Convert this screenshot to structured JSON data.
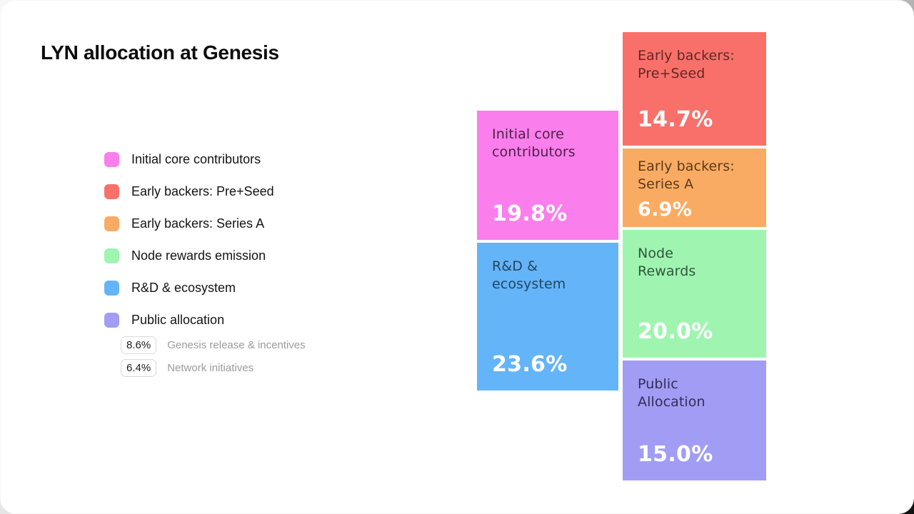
{
  "chart_data": {
    "type": "treemap",
    "title": "LYN allocation at Genesis",
    "unit": "%",
    "legend_position": "left",
    "value_text_color": "#ffffff",
    "segments": [
      {
        "label": "Initial core contributors",
        "block_label": "Initial core\ncontributors",
        "value": 19.8,
        "value_text": "19.8%",
        "color": "#fa7eec",
        "label_color": "#4f2049"
      },
      {
        "label": "Early backers: Pre+Seed",
        "block_label": "Early backers:\nPre+Seed",
        "value": 14.7,
        "value_text": "14.7%",
        "color": "#f9706b",
        "label_color": "#632722"
      },
      {
        "label": "Early backers: Series A",
        "block_label": "Early backers:\nSeries A",
        "value": 6.9,
        "value_text": "6.9%",
        "color": "#faab63",
        "label_color": "#5d3a16"
      },
      {
        "label": "Node rewards emission",
        "block_label": "Node\nRewards",
        "value": 20.0,
        "value_text": "20.0%",
        "color": "#9ff5b0",
        "label_color": "#33543f"
      },
      {
        "label": "R&D & ecosystem",
        "block_label": "R&D &\necosystem",
        "value": 23.6,
        "value_text": "23.6%",
        "color": "#64b4f9",
        "label_color": "#24455f"
      },
      {
        "label": "Public allocation",
        "block_label": "Public\nAllocation",
        "value": 15.0,
        "value_text": "15.0%",
        "color": "#a19df4",
        "label_color": "#302e58"
      }
    ],
    "public_allocation_breakdown": [
      {
        "value": 8.6,
        "value_text": "8.6%",
        "label": "Genesis release & incentives"
      },
      {
        "value": 6.4,
        "value_text": "6.4%",
        "label": "Network initiatives"
      }
    ]
  }
}
